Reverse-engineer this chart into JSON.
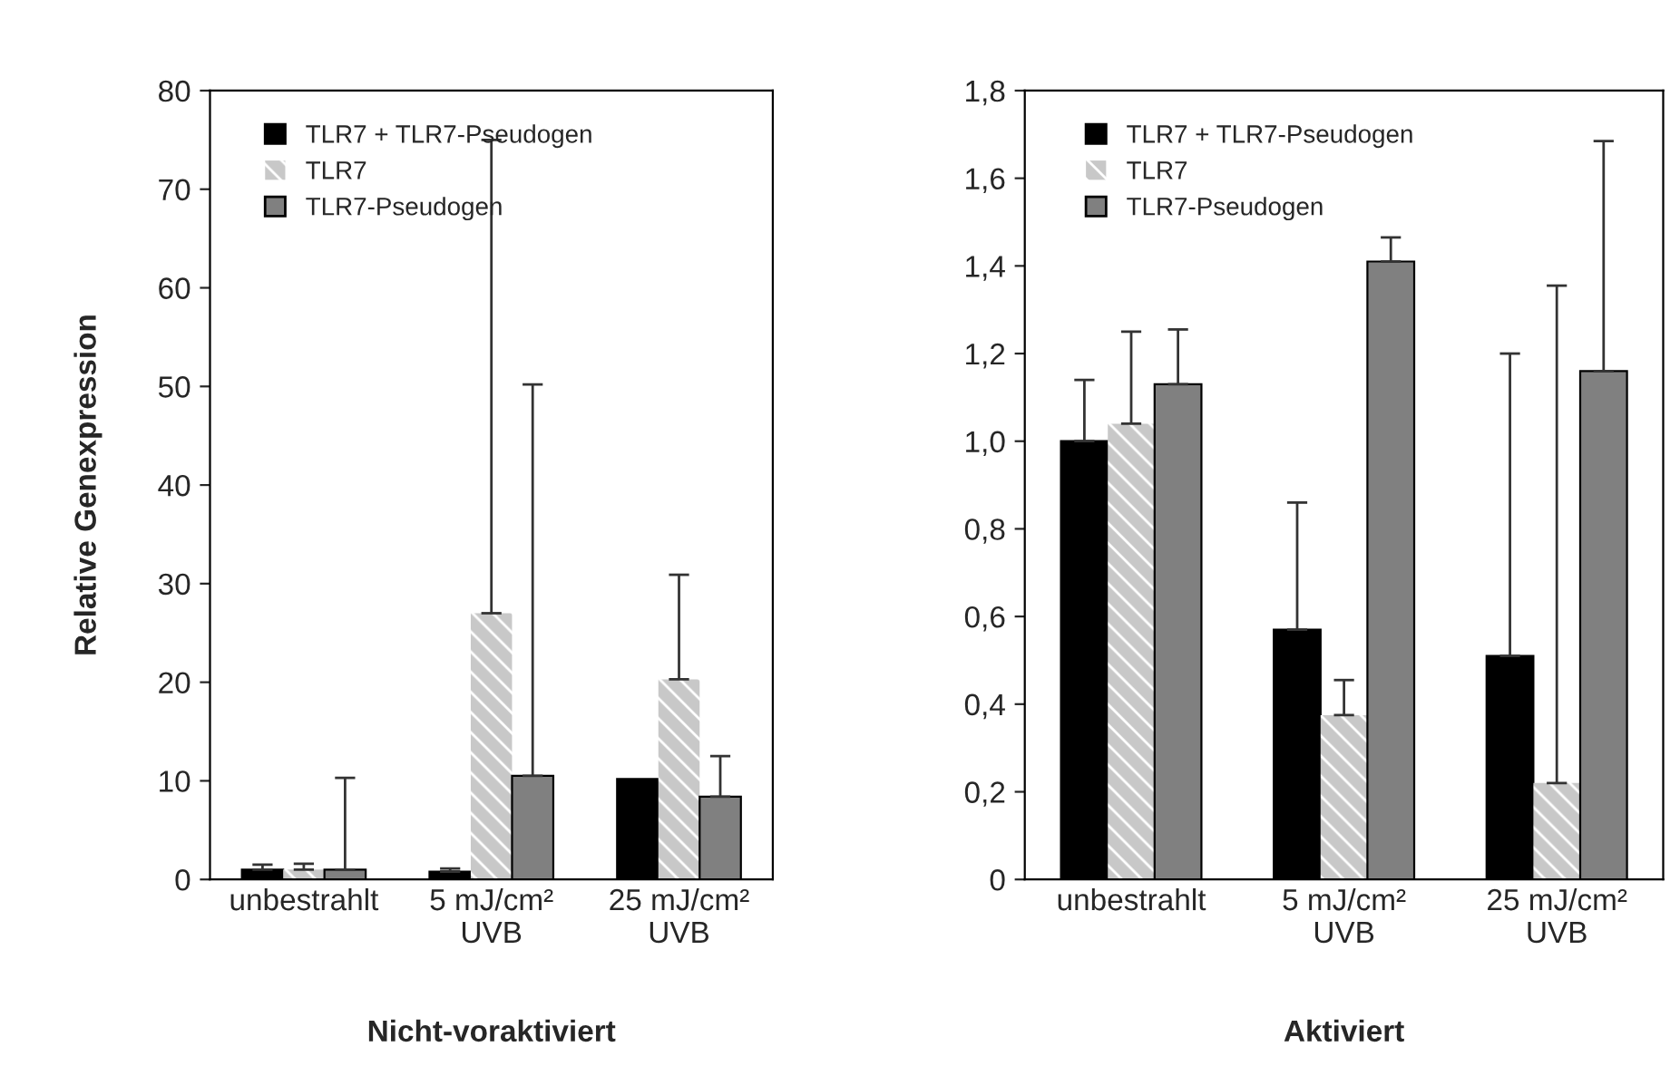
{
  "chart_data": [
    {
      "type": "bar",
      "xlabel": "Nicht-voraktiviert",
      "ylabel": "Relative Genexpression",
      "categories": [
        "unbestrahlt",
        "5 mJ/cm²\nUVB",
        "25 mJ/cm²\nUVB"
      ],
      "series": [
        {
          "name": "TLR7 + TLR7-Pseudogen",
          "color": "#000000",
          "values": [
            1.0,
            0.8,
            10.2
          ],
          "errors": [
            [
              1.0,
              1.5
            ],
            [
              0.8,
              1.1
            ],
            null
          ]
        },
        {
          "name": "TLR7",
          "color": "#c8c8c8",
          "values": [
            1.0,
            27,
            20.3
          ],
          "errors": [
            [
              1.0,
              1.6
            ],
            [
              27,
              75
            ],
            [
              20.3,
              30.9
            ]
          ]
        },
        {
          "name": "TLR7-Pseudogen",
          "color": "#808080",
          "values": [
            1.0,
            10.5,
            8.4
          ],
          "errors": [
            [
              1.0,
              10.3
            ],
            [
              10.5,
              50.2
            ],
            [
              8.4,
              12.5
            ]
          ]
        }
      ],
      "ylim": [
        0,
        80
      ],
      "yticks": [
        0,
        10,
        20,
        30,
        40,
        50,
        60,
        70,
        80
      ],
      "legend": "top left",
      "grid": false
    },
    {
      "type": "bar",
      "xlabel": "Aktiviert",
      "categories": [
        "unbestrahlt",
        "5 mJ/cm²\nUVB",
        "25 mJ/cm²\nUVB"
      ],
      "series": [
        {
          "name": "TLR7 + TLR7-Pseudogen",
          "color": "#000000",
          "values": [
            1.0,
            0.57,
            0.51
          ],
          "errors": [
            [
              1.0,
              1.14
            ],
            [
              0.57,
              0.86
            ],
            [
              0.51,
              1.2
            ]
          ]
        },
        {
          "name": "TLR7",
          "color": "#c8c8c8",
          "values": [
            1.04,
            0.375,
            0.22
          ],
          "errors": [
            [
              1.04,
              1.25
            ],
            [
              0.375,
              0.455
            ],
            [
              0.22,
              1.355
            ]
          ]
        },
        {
          "name": "TLR7-Pseudogen",
          "color": "#808080",
          "values": [
            1.13,
            1.41,
            1.16
          ],
          "errors": [
            [
              1.13,
              1.255
            ],
            [
              1.41,
              1.465
            ],
            [
              1.16,
              1.685
            ]
          ]
        }
      ],
      "ylim": [
        0,
        1.8
      ],
      "yticks": [
        0,
        {
          "value": 0.2,
          "label": "0,2"
        },
        {
          "value": 0.4,
          "label": "0,4"
        },
        {
          "value": 0.6,
          "label": "0,6"
        },
        {
          "value": 0.8,
          "label": "0,8"
        },
        {
          "value": 1.0,
          "label": "1,0"
        },
        {
          "value": 1.2,
          "label": "1,2"
        },
        {
          "value": 1.4,
          "label": "1,4"
        },
        {
          "value": 1.6,
          "label": "1,6"
        },
        {
          "value": 1.8,
          "label": "1,8"
        }
      ],
      "legend": "top left",
      "grid": false
    }
  ]
}
